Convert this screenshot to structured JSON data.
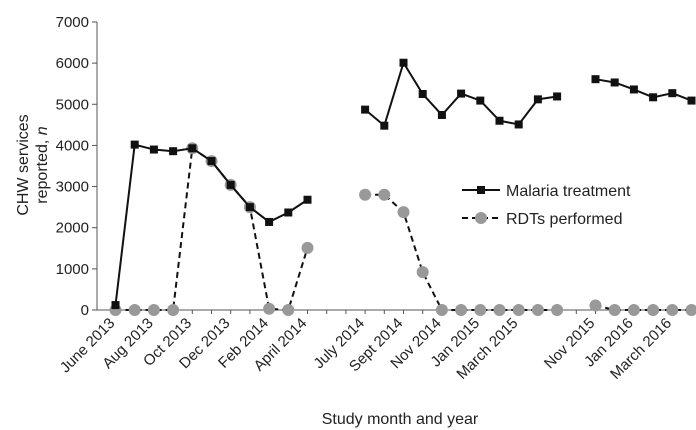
{
  "chart_data": {
    "type": "line",
    "xlabel": "Study month and year",
    "ylabel_line1": "CHW services",
    "ylabel_line2_prefix": "reported, ",
    "ylabel_line2_italic": "n",
    "ylim": [
      0,
      7000
    ],
    "yticks": [
      "0",
      "1000",
      "2000",
      "3000",
      "4000",
      "5000",
      "6000",
      "7000"
    ],
    "xtick_labels": [
      {
        "i": 0,
        "label": "June 2013"
      },
      {
        "i": 2,
        "label": "Aug 2013"
      },
      {
        "i": 4,
        "label": "Oct 2013"
      },
      {
        "i": 6,
        "label": "Dec 2013"
      },
      {
        "i": 8,
        "label": "Feb 2014"
      },
      {
        "i": 10,
        "label": "April 2014"
      },
      {
        "i": 13,
        "label": "July 2014"
      },
      {
        "i": 15,
        "label": "Sept 2014"
      },
      {
        "i": 17,
        "label": "Nov 2014"
      },
      {
        "i": 19,
        "label": "Jan 2015"
      },
      {
        "i": 21,
        "label": "March 2015"
      },
      {
        "i": 25,
        "label": "Nov 2015"
      },
      {
        "i": 27,
        "label": "Jan 2016"
      },
      {
        "i": 29,
        "label": "March 2016"
      }
    ],
    "legend_position": "right",
    "series": [
      {
        "name": "Malaria treatment",
        "style": "solid",
        "marker": "square",
        "color": "#111111",
        "segments": [
          [
            [
              0,
              120
            ],
            [
              1,
              4020
            ],
            [
              2,
              3900
            ],
            [
              3,
              3860
            ],
            [
              4,
              3930
            ],
            [
              5,
              3620
            ],
            [
              6,
              3040
            ],
            [
              7,
              2500
            ],
            [
              8,
              2140
            ],
            [
              9,
              2370
            ],
            [
              10,
              2680
            ]
          ],
          [
            [
              13,
              4870
            ],
            [
              14,
              4480
            ],
            [
              15,
              6010
            ],
            [
              16,
              5250
            ],
            [
              17,
              4740
            ],
            [
              18,
              5260
            ],
            [
              19,
              5090
            ],
            [
              20,
              4600
            ],
            [
              21,
              4510
            ],
            [
              22,
              5120
            ],
            [
              23,
              5190
            ]
          ],
          [
            [
              25,
              5610
            ],
            [
              26,
              5530
            ],
            [
              27,
              5360
            ],
            [
              28,
              5170
            ],
            [
              29,
              5270
            ],
            [
              30,
              5090
            ]
          ]
        ]
      },
      {
        "name": "RDTs performed",
        "style": "dashed",
        "marker": "circle",
        "color": "#999999",
        "segments": [
          [
            [
              0,
              0
            ],
            [
              1,
              0
            ],
            [
              2,
              0
            ],
            [
              3,
              0
            ],
            [
              4,
              3930
            ],
            [
              5,
              3620
            ],
            [
              6,
              3040
            ],
            [
              7,
              2500
            ],
            [
              8,
              30
            ],
            [
              9,
              0
            ],
            [
              10,
              1510
            ]
          ],
          [
            [
              13,
              2800
            ],
            [
              14,
              2800
            ],
            [
              15,
              2380
            ],
            [
              16,
              920
            ],
            [
              17,
              0
            ],
            [
              18,
              0
            ],
            [
              19,
              0
            ],
            [
              20,
              0
            ],
            [
              21,
              0
            ],
            [
              22,
              0
            ],
            [
              23,
              0
            ]
          ],
          [
            [
              25,
              110
            ],
            [
              26,
              0
            ],
            [
              27,
              0
            ],
            [
              28,
              0
            ],
            [
              29,
              0
            ],
            [
              30,
              0
            ]
          ]
        ]
      }
    ]
  }
}
